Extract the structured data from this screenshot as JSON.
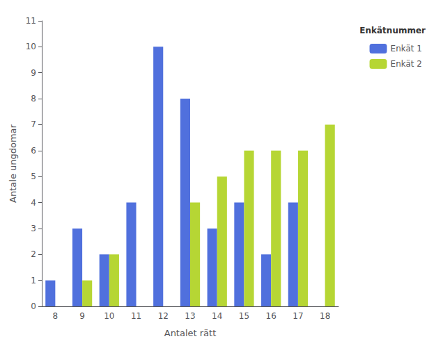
{
  "chart_data": {
    "type": "bar",
    "xlabel": "Antalet rätt",
    "ylabel": "Antale ungdomar",
    "categories": [
      8,
      9,
      10,
      11,
      12,
      13,
      14,
      15,
      16,
      17,
      18
    ],
    "series": [
      {
        "name": "Enkät 1",
        "values": [
          1,
          3,
          2,
          4,
          10,
          8,
          3,
          4,
          2,
          4,
          0
        ]
      },
      {
        "name": "Enkät 2",
        "values": [
          0,
          1,
          2,
          0,
          0,
          4,
          5,
          6,
          6,
          6,
          7
        ]
      }
    ],
    "legend_title": "Enkätnummer",
    "legend": "upper right",
    "ylim": [
      0,
      11
    ],
    "yticks": [
      0,
      1,
      2,
      3,
      4,
      5,
      6,
      7,
      8,
      9,
      10,
      11
    ],
    "grid": false
  }
}
